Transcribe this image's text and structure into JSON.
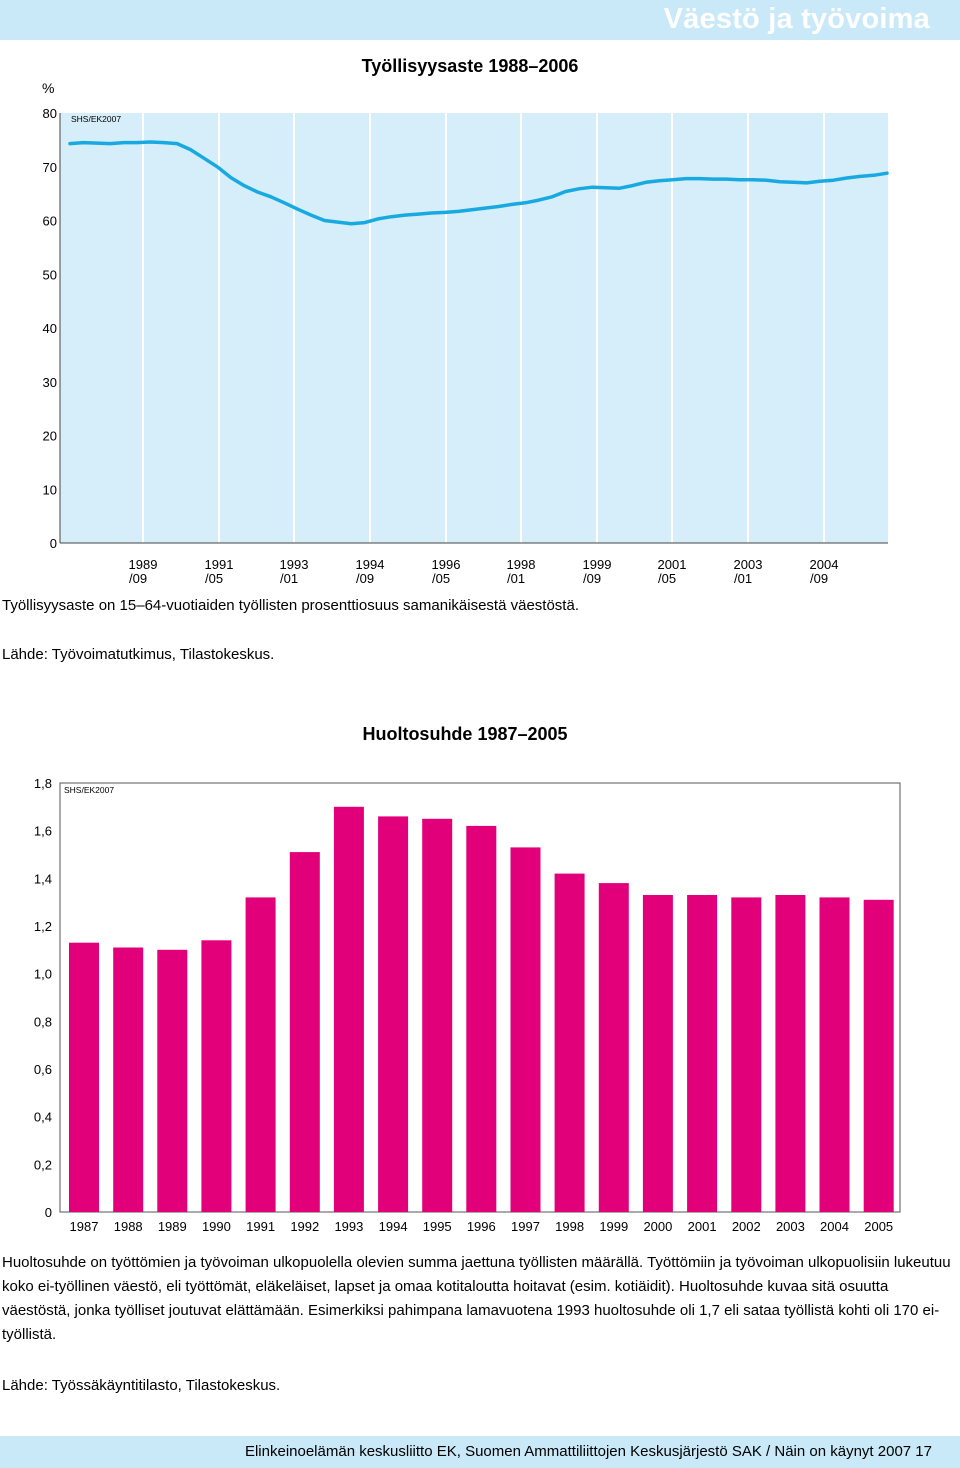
{
  "header": {
    "title": "Väestö ja työvoima"
  },
  "chart1": {
    "title": "Työllisyysaste 1988–2006",
    "unit": "%",
    "source_mark": "SHS/EK2007",
    "caption": "Työllisyysaste on 15–64-vuotiaiden työllisten prosenttiosuus samanikäisestä väestöstä.",
    "source": "Lähde: Työvoimatutkimus, Tilastokeskus."
  },
  "chart2": {
    "title": "Huoltosuhde 1987–2005",
    "source_mark": "SHS/EK2007",
    "caption": "Huoltosuhde on työttömien ja työvoiman ulkopuolella olevien summa jaettuna työllisten määrällä. Työttömiin ja työvoiman ulkopuolisiin lukeutuu koko ei-työllinen väestö, eli työttömät, eläkeläiset, lapset ja omaa kotitaloutta hoitavat (esim. kotiäidit). Huoltosuhde kuvaa sitä osuutta väestöstä, jonka työlliset joutuvat elättämään. Esimerkiksi pahimpana lamavuotena 1993 huoltosuhde oli 1,7 eli sataa työllistä kohti oli 170 ei-työllistä.",
    "source": "Lähde: Työssäkäyntitilasto, Tilastokeskus."
  },
  "footer": {
    "text": "Elinkeinoelämän keskusliitto EK, Suomen Ammattiliittojen Keskusjärjestö SAK / Näin on käynyt 2007  17"
  },
  "colors": {
    "band": "#c9e9f8",
    "plot_bg": "#d5eef9",
    "line": "#19a9e1",
    "bar": "#e2007a"
  },
  "chart_data": [
    {
      "type": "line",
      "title": "Työllisyysaste 1988–2006",
      "ylabel": "%",
      "ylim": [
        0,
        80
      ],
      "yticks": [
        "0",
        "10",
        "20",
        "30",
        "40",
        "50",
        "60",
        "70",
        "80"
      ],
      "xticks": [
        [
          "1989",
          "/09"
        ],
        [
          "1991",
          "/05"
        ],
        [
          "1993",
          "/01"
        ],
        [
          "1994",
          "/09"
        ],
        [
          "1996",
          "/05"
        ],
        [
          "1998",
          "/01"
        ],
        [
          "1999",
          "/09"
        ],
        [
          "2001",
          "/05"
        ],
        [
          "2003",
          "/01"
        ],
        [
          "2004",
          "/09"
        ]
      ],
      "grid": "vertical",
      "legend": "none",
      "series": [
        {
          "values": [
            74.3,
            74.5,
            74.4,
            74.3,
            74.5,
            74.5,
            74.6,
            74.5,
            74.3,
            73.2,
            71.6,
            70.0,
            68.0,
            66.5,
            65.3,
            64.4,
            63.3,
            62.1,
            61.0,
            60.0,
            59.7,
            59.4,
            59.6,
            60.3,
            60.7,
            61.0,
            61.2,
            61.4,
            61.5,
            61.7,
            62.0,
            62.3,
            62.6,
            63.0,
            63.3,
            63.8,
            64.4,
            65.4,
            65.9,
            66.2,
            66.1,
            66.0,
            66.5,
            67.1,
            67.4,
            67.6,
            67.8,
            67.8,
            67.7,
            67.7,
            67.6,
            67.6,
            67.5,
            67.2,
            67.1,
            67.0,
            67.3,
            67.5,
            67.9,
            68.2,
            68.4,
            68.8
          ]
        }
      ]
    },
    {
      "type": "bar",
      "title": "Huoltosuhde 1987–2005",
      "categories": [
        "1987",
        "1988",
        "1989",
        "1990",
        "1991",
        "1992",
        "1993",
        "1994",
        "1995",
        "1996",
        "1997",
        "1998",
        "1999",
        "2000",
        "2001",
        "2002",
        "2003",
        "2004",
        "2005"
      ],
      "values": [
        1.13,
        1.11,
        1.1,
        1.14,
        1.32,
        1.51,
        1.7,
        1.66,
        1.65,
        1.62,
        1.53,
        1.42,
        1.38,
        1.33,
        1.33,
        1.32,
        1.33,
        1.32,
        1.31
      ],
      "ylim": [
        0,
        1.8
      ],
      "yticks": [
        "0",
        "0,2",
        "0,4",
        "0,6",
        "0,8",
        "1,0",
        "1,2",
        "1,4",
        "1,6",
        "1,8"
      ],
      "grid": "none",
      "legend": "none"
    }
  ]
}
